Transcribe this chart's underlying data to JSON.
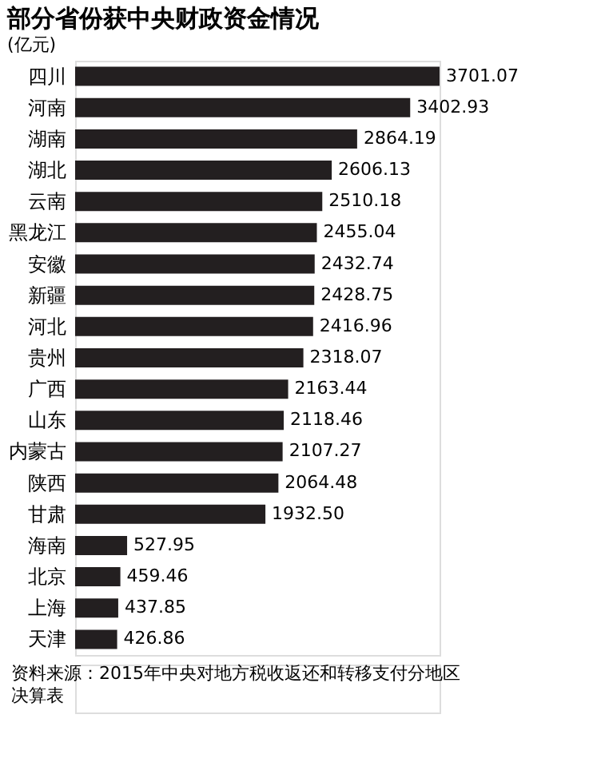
{
  "chart_data": {
    "type": "bar",
    "orientation": "horizontal",
    "title": "部分省份获中央财政资金情况",
    "subtitle": "(亿元)",
    "categories": [
      "四川",
      "河南",
      "湖南",
      "湖北",
      "云南",
      "黑龙江",
      "安徽",
      "新疆",
      "河北",
      "贵州",
      "广西",
      "山东",
      "内蒙古",
      "陕西",
      "甘肃",
      "海南",
      "北京",
      "上海",
      "天津"
    ],
    "values": [
      3701.07,
      3402.93,
      2864.19,
      2606.13,
      2510.18,
      2455.04,
      2432.74,
      2428.75,
      2416.96,
      2318.07,
      2163.44,
      2118.46,
      2107.27,
      2064.48,
      1932.5,
      527.95,
      459.46,
      437.85,
      426.86
    ],
    "value_labels": [
      "3701.07",
      "3402.93",
      "2864.19",
      "2606.13",
      "2510.18",
      "2455.04",
      "2432.74",
      "2428.75",
      "2416.96",
      "2318.07",
      "2163.44",
      "2118.46",
      "2107.27",
      "2064.48",
      "1932.50",
      "527.95",
      "459.46",
      "437.85",
      "426.86"
    ],
    "color": "#231f20",
    "annotations": [
      "资料来源：2015年中央对地方税收返还和转移支付分地区决算表"
    ]
  }
}
